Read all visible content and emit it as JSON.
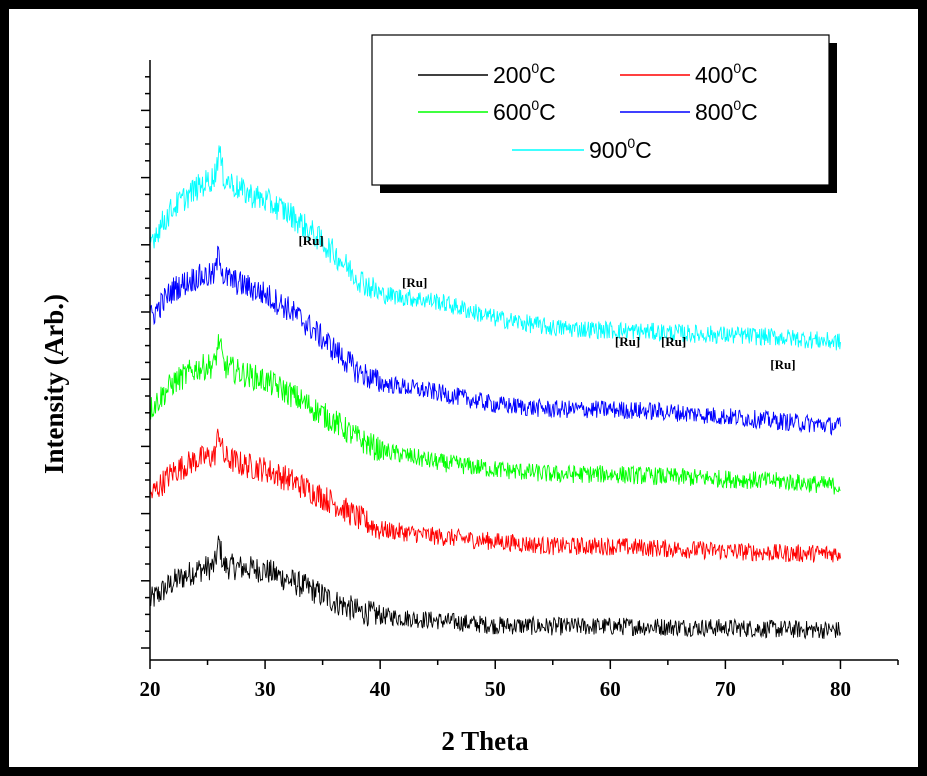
{
  "chart_data": {
    "type": "line",
    "xlabel": "2 Theta",
    "ylabel": "Intensity (Arb.)",
    "xlim": [
      20,
      85
    ],
    "x_ticks": [
      20,
      30,
      40,
      50,
      60,
      70,
      80
    ],
    "x_tick_labels": [
      "20",
      "30",
      "40",
      "50",
      "60",
      "70",
      "80"
    ],
    "grid": false,
    "legend_position": "top-right",
    "series": [
      {
        "name": "200",
        "unit_suffix": "C",
        "color": "#000000",
        "x": [
          20,
          22,
          24,
          26,
          28,
          30,
          32,
          34,
          36,
          38,
          40,
          45,
          50,
          55,
          60,
          65,
          70,
          75,
          80
        ],
        "y": [
          0.7,
          1.1,
          1.35,
          1.45,
          1.4,
          1.35,
          1.15,
          0.95,
          0.7,
          0.5,
          0.4,
          0.3,
          0.2,
          0.18,
          0.18,
          0.17,
          0.15,
          0.12,
          0.1
        ]
      },
      {
        "name": "400",
        "unit_suffix": "C",
        "color": "#ff0000",
        "x": [
          20,
          22,
          24,
          26,
          28,
          30,
          32,
          34,
          36,
          38,
          40,
          45,
          50,
          55,
          60,
          65,
          70,
          75,
          80
        ],
        "y": [
          2.9,
          3.4,
          3.65,
          3.75,
          3.55,
          3.45,
          3.25,
          3.0,
          2.75,
          2.45,
          2.2,
          2.05,
          1.95,
          1.85,
          1.85,
          1.8,
          1.75,
          1.7,
          1.7
        ]
      },
      {
        "name": "600",
        "unit_suffix": "C",
        "color": "#00ff00",
        "x": [
          20,
          22,
          24,
          26,
          28,
          30,
          32,
          34,
          36,
          38,
          40,
          45,
          50,
          55,
          60,
          65,
          70,
          75,
          80
        ],
        "y": [
          4.7,
          5.25,
          5.55,
          5.65,
          5.45,
          5.3,
          5.05,
          4.75,
          4.45,
          4.1,
          3.85,
          3.6,
          3.45,
          3.35,
          3.35,
          3.3,
          3.25,
          3.2,
          3.1
        ]
      },
      {
        "name": "800",
        "unit_suffix": "C",
        "color": "#0000ff",
        "x": [
          20,
          22,
          24,
          26,
          28,
          30,
          32,
          34,
          36,
          38,
          40,
          45,
          50,
          55,
          60,
          65,
          70,
          75,
          80
        ],
        "y": [
          6.6,
          7.2,
          7.45,
          7.5,
          7.3,
          7.1,
          6.8,
          6.4,
          5.95,
          5.5,
          5.25,
          5.05,
          4.8,
          4.7,
          4.7,
          4.65,
          4.55,
          4.45,
          4.35
        ]
      },
      {
        "name": "900",
        "unit_suffix": "C",
        "color": "#00ffff",
        "x": [
          20,
          22,
          24,
          26,
          28,
          30,
          32,
          34,
          36,
          38,
          40,
          45,
          50,
          55,
          60,
          65,
          70,
          75,
          80
        ],
        "y": [
          8.2,
          8.9,
          9.3,
          9.6,
          9.25,
          9.05,
          8.8,
          8.4,
          7.95,
          7.45,
          7.1,
          6.95,
          6.6,
          6.4,
          6.35,
          6.3,
          6.25,
          6.2,
          6.1
        ]
      }
    ],
    "annotations": [
      {
        "text": "[Ru]",
        "x": 34.0
      },
      {
        "text": "[Ru]",
        "x": 43.0
      },
      {
        "text": "[Ru]",
        "x": 61.5
      },
      {
        "text": "[Ru]",
        "x": 65.5
      },
      {
        "text": "[Ru]",
        "x": 75.0
      }
    ]
  }
}
